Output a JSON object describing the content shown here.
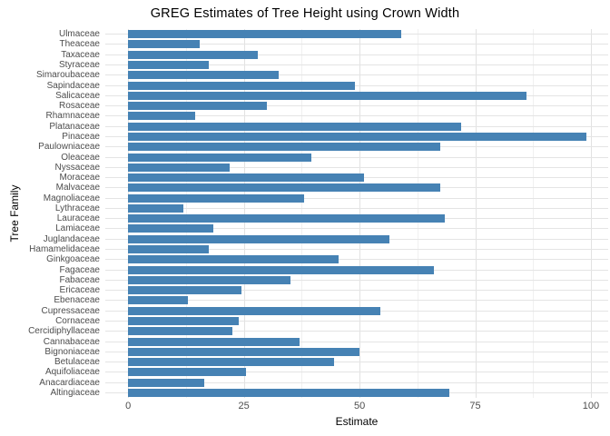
{
  "chart_data": {
    "type": "bar",
    "orientation": "horizontal",
    "title": "GREG Estimates of Tree Height using Crown Width",
    "xlabel": "Estimate",
    "ylabel": "Tree Family",
    "x_ticks": [
      0,
      25,
      50,
      75,
      100
    ],
    "minor_gridlines": [
      12.5,
      37.5,
      62.5,
      87.5
    ],
    "xlim": [
      -4.94,
      103.74
    ],
    "grid": true,
    "legend": false,
    "bar_color": "#4682B4",
    "categories": [
      "Ulmaceae",
      "Theaceae",
      "Taxaceae",
      "Styraceae",
      "Simaroubaceae",
      "Sapindaceae",
      "Salicaceae",
      "Rosaceae",
      "Rhamnaceae",
      "Platanaceae",
      "Pinaceae",
      "Paulowniaceae",
      "Oleaceae",
      "Nyssaceae",
      "Moraceae",
      "Malvaceae",
      "Magnoliaceae",
      "Lythraceae",
      "Lauraceae",
      "Lamiaceae",
      "Juglandaceae",
      "Hamamelidaceae",
      "Ginkgoaceae",
      "Fagaceae",
      "Fabaceae",
      "Ericaceae",
      "Ebenaceae",
      "Cupressaceae",
      "Cornaceae",
      "Cercidiphyllaceae",
      "Cannabaceae",
      "Bignoniaceae",
      "Betulaceae",
      "Aquifoliaceae",
      "Anacardiaceae",
      "Altingiaceae"
    ],
    "values": [
      59,
      15.5,
      28,
      17.5,
      32.5,
      49,
      86,
      30,
      14.5,
      72,
      99,
      67.5,
      39.5,
      22,
      51,
      67.5,
      38,
      12,
      68.5,
      18.5,
      56.5,
      17.5,
      45.5,
      66,
      35,
      24.5,
      13,
      54.5,
      24,
      22.5,
      37,
      50,
      44.5,
      25.5,
      16.5,
      69.5
    ]
  },
  "colors": {
    "bar": "#4682B4",
    "grid_major": "#e2e2e2",
    "grid_minor": "#f0f0f0",
    "axis_text": "#4d4d4d",
    "title_text": "#000000"
  }
}
